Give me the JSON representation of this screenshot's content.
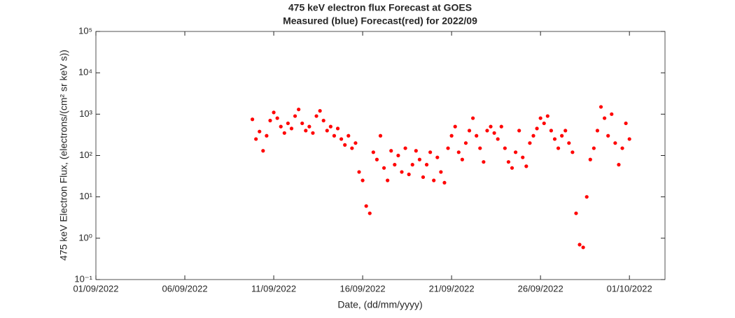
{
  "chart_data": {
    "type": "scatter",
    "title": "475 keV electron flux Forecast at GOES",
    "subtitle": "Measured (blue) Forecast(red) for 2022/09",
    "x_label": "Date, (dd/mm/yyyy)",
    "y_label": "475 keV Electron Flux, (electrons/(cm² sr keV s))",
    "log_y": true,
    "color": "#ff0000",
    "xlim": [
      0,
      32
    ],
    "xticks": [
      {
        "value": 0,
        "label": "01/09/2022"
      },
      {
        "value": 5,
        "label": "06/09/2022"
      },
      {
        "value": 10,
        "label": "11/09/2022"
      },
      {
        "value": 15,
        "label": "16/09/2022"
      },
      {
        "value": 20,
        "label": "21/09/2022"
      },
      {
        "value": 25,
        "label": "26/09/2022"
      },
      {
        "value": 30,
        "label": "01/10/2022"
      }
    ],
    "ylim": [
      0.1,
      100000
    ],
    "yticks": [
      {
        "value": 0.1,
        "label": "10⁻¹"
      },
      {
        "value": 1,
        "label": "10⁰"
      },
      {
        "value": 10,
        "label": "10¹"
      },
      {
        "value": 100,
        "label": "10²"
      },
      {
        "value": 1000,
        "label": "10³"
      },
      {
        "value": 10000,
        "label": "10⁴"
      },
      {
        "value": 100000,
        "label": "10⁵"
      }
    ],
    "x": [
      8.8,
      9,
      9.2,
      9.4,
      9.6,
      9.8,
      10,
      10.2,
      10.4,
      10.6,
      10.8,
      11,
      11.2,
      11.4,
      11.6,
      11.8,
      12,
      12.2,
      12.4,
      12.6,
      12.8,
      13,
      13.2,
      13.4,
      13.6,
      13.8,
      14,
      14.2,
      14.4,
      14.6,
      14.8,
      15,
      15.2,
      15.4,
      15.6,
      15.8,
      16,
      16.2,
      16.4,
      16.6,
      16.8,
      17,
      17.2,
      17.4,
      17.6,
      17.8,
      18,
      18.2,
      18.4,
      18.6,
      18.8,
      19,
      19.2,
      19.4,
      19.6,
      19.8,
      20,
      20.2,
      20.4,
      20.6,
      20.8,
      21,
      21.2,
      21.4,
      21.6,
      21.8,
      22,
      22.2,
      22.4,
      22.6,
      22.8,
      23,
      23.2,
      23.4,
      23.6,
      23.8,
      24,
      24.2,
      24.4,
      24.6,
      24.8,
      25,
      25.2,
      25.4,
      25.6,
      25.8,
      26,
      26.2,
      26.4,
      26.6,
      26.8,
      27,
      27.2,
      27.4,
      27.6,
      27.8,
      28,
      28.2,
      28.4,
      28.6,
      28.8,
      29,
      29.2,
      29.4,
      29.6,
      29.8,
      30
    ],
    "values": [
      750,
      250,
      380,
      130,
      300,
      700,
      1100,
      800,
      500,
      350,
      600,
      450,
      900,
      1300,
      600,
      400,
      500,
      350,
      900,
      1200,
      700,
      400,
      500,
      300,
      450,
      250,
      180,
      300,
      150,
      200,
      40,
      25,
      6,
      4,
      120,
      80,
      300,
      50,
      25,
      130,
      60,
      100,
      40,
      150,
      35,
      60,
      130,
      80,
      30,
      60,
      120,
      25,
      90,
      40,
      22,
      150,
      300,
      500,
      120,
      80,
      200,
      400,
      800,
      300,
      150,
      70,
      400,
      500,
      350,
      250,
      500,
      150,
      70,
      50,
      120,
      400,
      90,
      55,
      200,
      300,
      450,
      800,
      600,
      900,
      400,
      250,
      150,
      300,
      400,
      200,
      120,
      4,
      0.7,
      0.6,
      10,
      80,
      150,
      400,
      1500,
      800,
      300,
      1000,
      200,
      60,
      150,
      600,
      250
    ]
  }
}
